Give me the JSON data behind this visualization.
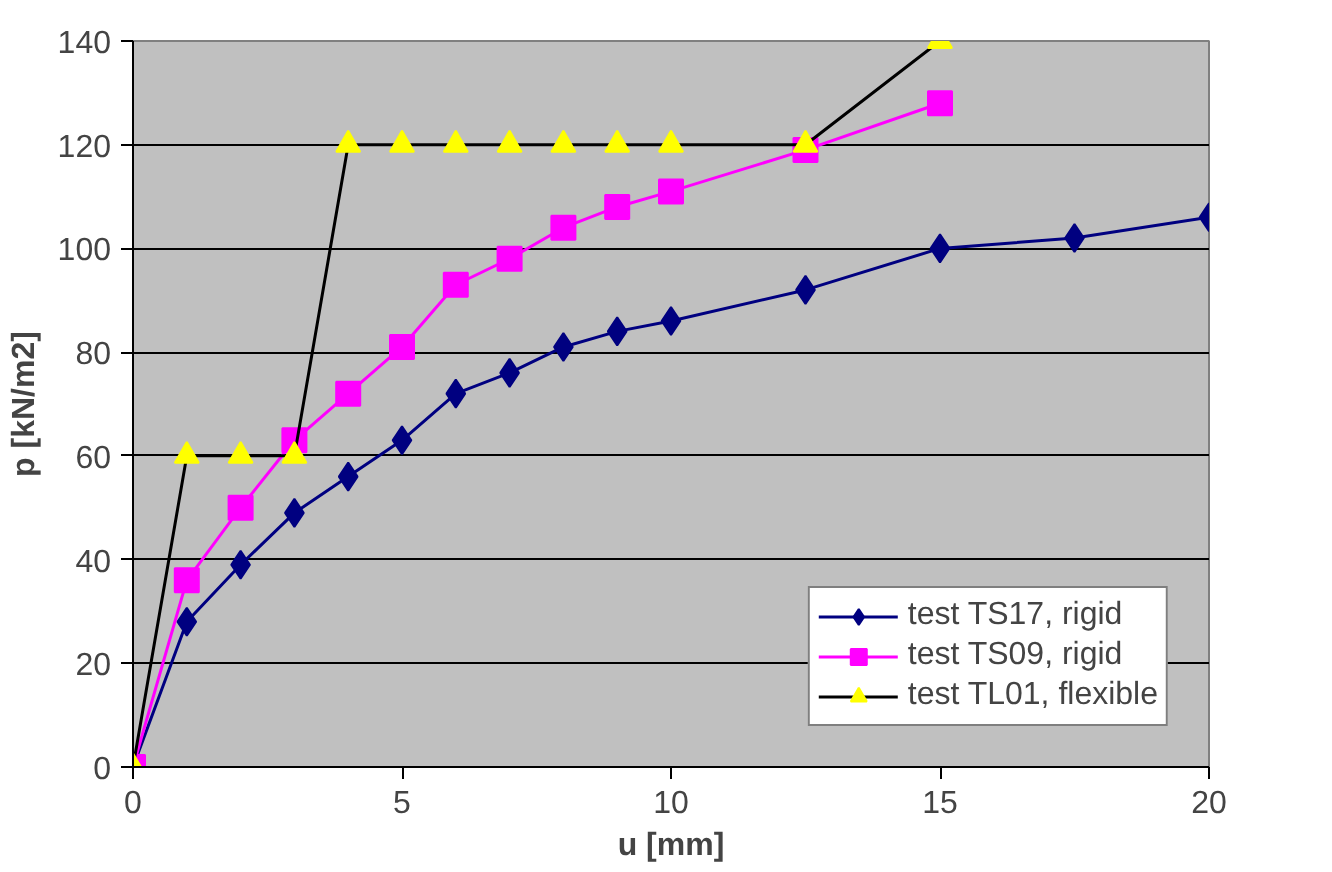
{
  "chart_data": {
    "type": "line",
    "xlabel": "u [mm]",
    "ylabel": "p [kN/m2]",
    "xlim": [
      0,
      20
    ],
    "ylim": [
      0,
      140
    ],
    "xticks": [
      0,
      5,
      10,
      15,
      20
    ],
    "yticks": [
      0,
      20,
      40,
      60,
      80,
      100,
      120,
      140
    ],
    "grid": "y",
    "legend": "bottom right",
    "series": [
      {
        "name": "test TS17, rigid",
        "color": "#000080",
        "marker": "diamond",
        "x": [
          0,
          1,
          2,
          3,
          4,
          5,
          6,
          7,
          8,
          9,
          10,
          12.5,
          15,
          17.5,
          20
        ],
        "values": [
          0,
          28,
          39,
          49,
          56,
          63,
          72,
          76,
          81,
          84,
          86,
          92,
          100,
          102,
          106
        ]
      },
      {
        "name": "test TS09, rigid",
        "color": "#ff00ff",
        "marker": "square",
        "x": [
          0,
          1,
          2,
          3,
          4,
          5,
          6,
          7,
          8,
          9,
          10,
          12.5,
          15
        ],
        "values": [
          0,
          36,
          50,
          63,
          72,
          81,
          93,
          98,
          104,
          108,
          111,
          119,
          128
        ]
      },
      {
        "name": "test TL01, flexible",
        "color": "#000000",
        "colors": [
          "#ffff00",
          "#ffff00",
          "#ffff00",
          "#ffff00",
          "#ffff00",
          "#ffff00",
          "#ffff00",
          "#ffff00",
          "#ffff00",
          "#ffff00",
          "#ffff00",
          "#ffff00",
          "#ffff00"
        ],
        "marker": "triangle",
        "x": [
          0,
          1,
          2,
          3,
          4,
          5,
          6,
          7,
          8,
          9,
          10,
          12.5,
          15
        ],
        "values": [
          0,
          60,
          60,
          60,
          120,
          120,
          120,
          120,
          120,
          120,
          120,
          120,
          140
        ]
      }
    ]
  }
}
